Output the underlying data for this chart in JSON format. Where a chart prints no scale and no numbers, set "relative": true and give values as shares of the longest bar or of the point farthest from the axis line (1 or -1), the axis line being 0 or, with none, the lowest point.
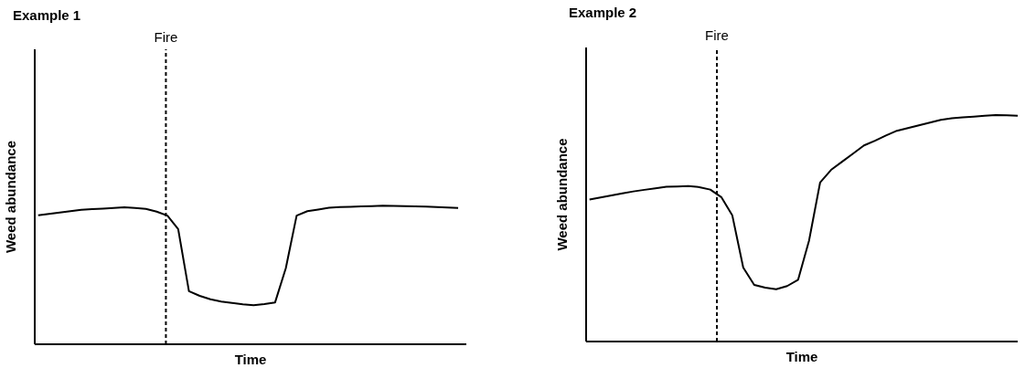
{
  "chart_data": [
    {
      "type": "line",
      "title": "Example 1",
      "xlabel": "Time",
      "ylabel": "Weed abundance",
      "relative": true,
      "marker": "none",
      "line_style": "solid",
      "categories": [
        null,
        null,
        null,
        null,
        null,
        null,
        null,
        null,
        null,
        null,
        null,
        null,
        null,
        null,
        null,
        null,
        null,
        null,
        null,
        null,
        null,
        null,
        null,
        null,
        null,
        null,
        null,
        null,
        null,
        null,
        null,
        null,
        null,
        null,
        null,
        null,
        null,
        null,
        null,
        null
      ],
      "annotations": [
        "Fire"
      ],
      "series": [
        {
          "color": "#000000",
          "values": [
            0.931,
            0.941,
            0.95,
            0.96,
            0.97,
            0.975,
            0.979,
            0.983,
            0.988,
            0.983,
            0.977,
            0.957,
            0.928,
            0.831,
            0.383,
            0.349,
            0.324,
            0.308,
            0.298,
            0.288,
            0.282,
            0.29,
            0.302,
            0.55,
            0.928,
            0.96,
            0.972,
            0.985,
            0.989,
            0.991,
            0.994,
            0.997,
            1,
            0.998,
            0.997,
            0.995,
            0.993,
            0.99,
            0.987,
            0.983
          ]
        }
      ]
    },
    {
      "type": "line",
      "title": "Example 2",
      "xlabel": "Time",
      "ylabel": "Weed abundance",
      "relative": true,
      "marker": "none",
      "line_style": "solid",
      "categories": [
        null,
        null,
        null,
        null,
        null,
        null,
        null,
        null,
        null,
        null,
        null,
        null,
        null,
        null,
        null,
        null,
        null,
        null,
        null,
        null,
        null,
        null,
        null,
        null,
        null,
        null,
        null,
        null,
        null,
        null,
        null,
        null,
        null,
        null,
        null,
        null,
        null,
        null,
        null,
        null
      ],
      "annotations": [
        "Fire"
      ],
      "series": [
        {
          "color": "#000000",
          "values": [
            0.627,
            0.636,
            0.645,
            0.654,
            0.663,
            0.67,
            0.677,
            0.684,
            0.685,
            0.687,
            0.682,
            0.671,
            0.638,
            0.558,
            0.327,
            0.25,
            0.238,
            0.231,
            0.245,
            0.273,
            0.447,
            0.702,
            0.758,
            0.794,
            0.83,
            0.866,
            0.887,
            0.91,
            0.931,
            0.943,
            0.955,
            0.967,
            0.979,
            0.986,
            0.99,
            0.993,
            0.997,
            1,
            0.999,
            0.997
          ]
        }
      ]
    }
  ]
}
